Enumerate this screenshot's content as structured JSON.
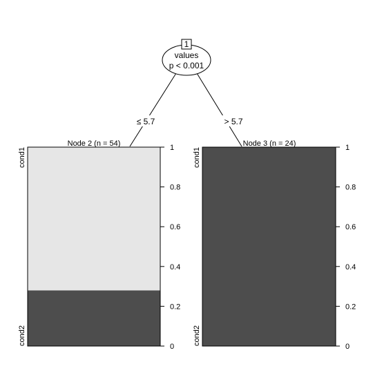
{
  "root": {
    "id": "1",
    "variable": "values",
    "pvalue": "p < 0.001"
  },
  "edges": [
    {
      "label": "≤ 5.7"
    },
    {
      "label": "> 5.7"
    }
  ],
  "leaves": [
    {
      "title": "Node 2 (n = 54)",
      "category_top": "cond1",
      "category_bottom": "cond2",
      "prop_cond1": 0.72,
      "prop_cond2": 0.28
    },
    {
      "title": "Node 3 (n = 24)",
      "category_top": "cond1",
      "category_bottom": "cond2",
      "prop_cond1": 0.0,
      "prop_cond2": 1.0
    }
  ],
  "axis": {
    "ticks": [
      "0",
      "0.2",
      "0.4",
      "0.6",
      "0.8",
      "1"
    ],
    "min": 0,
    "max": 1
  },
  "colors": {
    "cond1": "#e6e6e6",
    "cond2": "#4d4d4d",
    "stroke": "#000000"
  }
}
